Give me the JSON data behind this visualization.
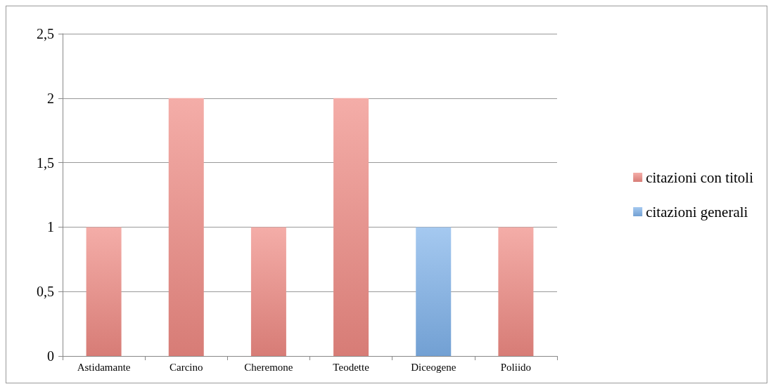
{
  "chart_data": {
    "type": "bar",
    "stacked": true,
    "categories": [
      "Astidamante",
      "Carcino",
      "Cheremone",
      "Teodette",
      "Diceogene",
      "Poliido"
    ],
    "series": [
      {
        "name": "citazioni con titoli",
        "color": "#ef8a83",
        "values": [
          1,
          2,
          1,
          2,
          null,
          1
        ]
      },
      {
        "name": "citazioni generali",
        "color": "#7fb2ea",
        "values": [
          null,
          null,
          null,
          null,
          1,
          null
        ]
      }
    ],
    "ylim": [
      0,
      2.5
    ],
    "yticks": [
      0,
      {
        "value": 0.5,
        "label": "0,5"
      },
      1,
      {
        "value": 1.5,
        "label": "1,5"
      },
      2,
      {
        "value": 2.5,
        "label": "2,5"
      }
    ],
    "grid": "y",
    "legend": "right"
  }
}
